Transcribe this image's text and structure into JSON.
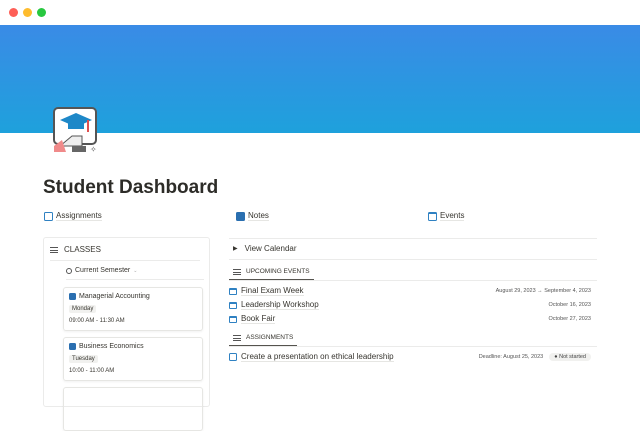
{
  "window": {
    "controls": [
      "close",
      "minimize",
      "maximize"
    ]
  },
  "page": {
    "title": "Student Dashboard",
    "banner_colors": [
      "#3a8be6",
      "#1ea1dc"
    ],
    "icon": "graduation-screen-icon"
  },
  "links": [
    {
      "label": "Assignments",
      "icon": "edit-icon"
    },
    {
      "label": "Notes",
      "icon": "notes-icon"
    },
    {
      "label": "Events",
      "icon": "calendar-icon"
    }
  ],
  "classes": {
    "title": "CLASSES",
    "filter": "Current Semester",
    "items": [
      {
        "name": "Managerial Accounting",
        "day": "Monday",
        "time": "09:00 AM - 11:30 AM"
      },
      {
        "name": "Business Economics",
        "day": "Tuesday",
        "time": "10:00 - 11:00 AM"
      }
    ]
  },
  "calendar": {
    "toggle": "View Calendar"
  },
  "upcoming": {
    "title": "UPCOMING EVENTS",
    "items": [
      {
        "name": "Final Exam Week",
        "date": "August 29, 2023 → September 4, 2023"
      },
      {
        "name": "Leadership Workshop",
        "date": "October 16, 2023"
      },
      {
        "name": "Book Fair",
        "date": "October 27, 2023"
      }
    ]
  },
  "assignments": {
    "title": "ASSIGNMENTS",
    "items": [
      {
        "name": "Create a presentation on ethical leadership",
        "deadline": "Deadline: August 25, 2023",
        "status": "Not started"
      }
    ]
  }
}
